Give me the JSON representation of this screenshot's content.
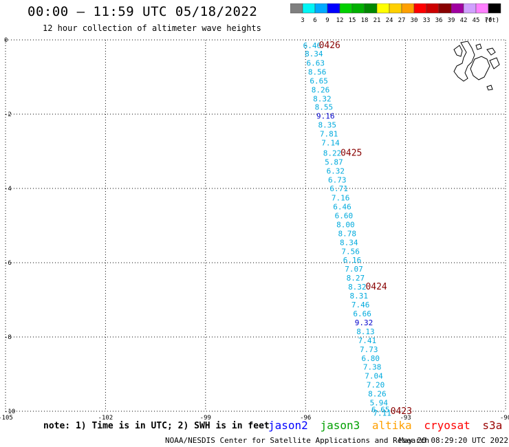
{
  "header": {
    "title": "00:00 – 11:59 UTC 05/18/2022",
    "subtitle": "12 hour collection of altimeter wave heights"
  },
  "colorbar": {
    "colors": [
      "#7f7f7f",
      "#00f5f5",
      "#00aaff",
      "#0000ff",
      "#00d000",
      "#00b000",
      "#008800",
      "#ffff00",
      "#ffd000",
      "#ffa000",
      "#ff0000",
      "#cc0000",
      "#880000",
      "#a000a0",
      "#d0a0ff",
      "#ff80ff",
      "#000000"
    ],
    "labels": [
      "3",
      "6",
      "9",
      "12",
      "15",
      "18",
      "21",
      "24",
      "27",
      "30",
      "33",
      "36",
      "39",
      "42",
      "45",
      "70"
    ],
    "unit": "(ft)"
  },
  "note": "note: 1) Time is in UTC; 2) SWH is in feet",
  "legend": [
    {
      "name": "jason2",
      "color": "#0000ff"
    },
    {
      "name": "jason3",
      "color": "#00a000"
    },
    {
      "name": "altika",
      "color": "#ffa000"
    },
    {
      "name": "cryosat",
      "color": "#ff0000"
    },
    {
      "name": "s3a",
      "color": "#990000"
    }
  ],
  "footer": {
    "left": "NOAA/NESDIS Center for Satellite Applications and Research",
    "right": "May 20 08:29:20 UTC 2022"
  },
  "chart_data": {
    "type": "scatter",
    "xlim": [
      -105,
      -90
    ],
    "ylim": [
      -10,
      0
    ],
    "x_ticks": [
      -105,
      -102,
      -99,
      -96,
      -93,
      -90
    ],
    "y_ticks": [
      0,
      -2,
      -4,
      -6,
      -8,
      -10
    ],
    "grid": true,
    "points": [
      {
        "lon": -95.8,
        "lat": -0.15,
        "swh": "6.46"
      },
      {
        "lon": -95.75,
        "lat": -0.37,
        "swh": "8.34"
      },
      {
        "lon": -95.7,
        "lat": -0.62,
        "swh": "6.63"
      },
      {
        "lon": -95.65,
        "lat": -0.86,
        "swh": "8.56"
      },
      {
        "lon": -95.6,
        "lat": -1.1,
        "swh": "6.65"
      },
      {
        "lon": -95.55,
        "lat": -1.34,
        "swh": "8.26"
      },
      {
        "lon": -95.5,
        "lat": -1.58,
        "swh": "8.32"
      },
      {
        "lon": -95.45,
        "lat": -1.81,
        "swh": "8.55"
      },
      {
        "lon": -95.4,
        "lat": -2.05,
        "swh": "9.16"
      },
      {
        "lon": -95.35,
        "lat": -2.29,
        "swh": "8.35"
      },
      {
        "lon": -95.3,
        "lat": -2.53,
        "swh": "7.81"
      },
      {
        "lon": -95.25,
        "lat": -2.77,
        "swh": "7.14"
      },
      {
        "lon": -95.2,
        "lat": -3.05,
        "swh": "8.22"
      },
      {
        "lon": -95.15,
        "lat": -3.29,
        "swh": "5.87"
      },
      {
        "lon": -95.1,
        "lat": -3.53,
        "swh": "6.32"
      },
      {
        "lon": -95.05,
        "lat": -3.77,
        "swh": "6.73"
      },
      {
        "lon": -95.0,
        "lat": -4.0,
        "swh": "6.71"
      },
      {
        "lon": -94.95,
        "lat": -4.25,
        "swh": "7.16"
      },
      {
        "lon": -94.9,
        "lat": -4.49,
        "swh": "6.46"
      },
      {
        "lon": -94.85,
        "lat": -4.73,
        "swh": "6.60"
      },
      {
        "lon": -94.8,
        "lat": -4.97,
        "swh": "8.00"
      },
      {
        "lon": -94.75,
        "lat": -5.21,
        "swh": "8.78"
      },
      {
        "lon": -94.7,
        "lat": -5.45,
        "swh": "8.34"
      },
      {
        "lon": -94.65,
        "lat": -5.69,
        "swh": "7.56"
      },
      {
        "lon": -94.6,
        "lat": -5.93,
        "swh": "6.16"
      },
      {
        "lon": -94.55,
        "lat": -6.17,
        "swh": "7.07"
      },
      {
        "lon": -94.5,
        "lat": -6.41,
        "swh": "8.27"
      },
      {
        "lon": -94.45,
        "lat": -6.65,
        "swh": "8.32"
      },
      {
        "lon": -94.4,
        "lat": -6.89,
        "swh": "8.31"
      },
      {
        "lon": -94.35,
        "lat": -7.13,
        "swh": "7.46"
      },
      {
        "lon": -94.3,
        "lat": -7.37,
        "swh": "6.66"
      },
      {
        "lon": -94.25,
        "lat": -7.61,
        "swh": "9.32"
      },
      {
        "lon": -94.2,
        "lat": -7.85,
        "swh": "8.13"
      },
      {
        "lon": -94.15,
        "lat": -8.09,
        "swh": "7.41"
      },
      {
        "lon": -94.1,
        "lat": -8.33,
        "swh": "7.73"
      },
      {
        "lon": -94.05,
        "lat": -8.57,
        "swh": "6.80"
      },
      {
        "lon": -94.0,
        "lat": -8.81,
        "swh": "7.38"
      },
      {
        "lon": -93.95,
        "lat": -9.05,
        "swh": "7.04"
      },
      {
        "lon": -93.9,
        "lat": -9.29,
        "swh": "7.20"
      },
      {
        "lon": -93.85,
        "lat": -9.53,
        "swh": "8.26"
      },
      {
        "lon": -93.8,
        "lat": -9.77,
        "swh": "5.94"
      },
      {
        "lon": -93.75,
        "lat": -9.95,
        "swh": "6.65"
      },
      {
        "lon": -93.7,
        "lat": -10.05,
        "swh": "7.11"
      }
    ],
    "time_labels": [
      {
        "lon": -95.6,
        "lat": -0.15,
        "text": "0426"
      },
      {
        "lon": -94.95,
        "lat": -3.05,
        "text": "0425"
      },
      {
        "lon": -94.2,
        "lat": -6.65,
        "text": "0424"
      },
      {
        "lon": -93.45,
        "lat": -10.0,
        "text": "0423"
      }
    ]
  }
}
